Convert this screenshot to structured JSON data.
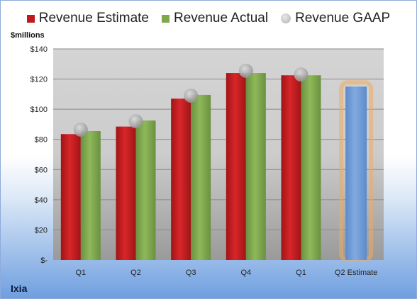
{
  "chart_data": {
    "type": "bar",
    "ylabel": "$millions",
    "ylim": [
      0,
      140
    ],
    "ytick_labels": [
      "$-",
      "$20",
      "$40",
      "$60",
      "$80",
      "$100",
      "$120",
      "$140"
    ],
    "categories": [
      "Q1",
      "Q2",
      "Q3",
      "Q4",
      "Q1",
      "Q2 Estimate"
    ],
    "series": [
      {
        "name": "Revenue Estimate",
        "color": "#c0191b",
        "values": [
          83.5,
          88.5,
          107,
          124,
          122.5,
          null
        ]
      },
      {
        "name": "Revenue Actual",
        "color": "#7fa84b",
        "values": [
          85.5,
          92.5,
          109.5,
          124,
          122.5,
          null
        ]
      },
      {
        "name": "Revenue GAAP",
        "color": "#b8b8b8",
        "type": "marker",
        "values": [
          86.5,
          92,
          109,
          125.5,
          123,
          null
        ]
      }
    ],
    "forecast": {
      "category": "Q2 Estimate",
      "value": 115,
      "color": "#6f9bd6",
      "glow": "#f2a95c"
    },
    "grid": true,
    "legend": "top"
  },
  "company": "Ixia"
}
